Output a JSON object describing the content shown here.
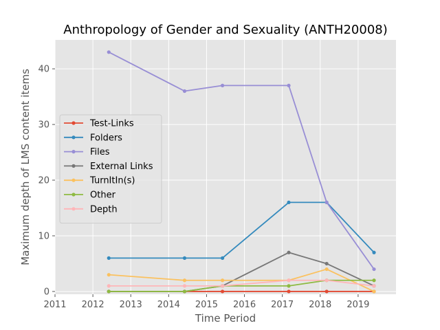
{
  "chart_data": {
    "type": "line",
    "title": "Anthropology of Gender and Sexuality (ANTH20008)",
    "xlabel": "Time Period",
    "ylabel": "Maximum depth of LMS content items",
    "xlim": [
      2011.0,
      2020.0
    ],
    "ylim": [
      -0.5,
      45.2
    ],
    "xticks": [
      2011,
      2012,
      2013,
      2014,
      2015,
      2016,
      2017,
      2018,
      2019
    ],
    "yticks": [
      0,
      10,
      20,
      30,
      40
    ],
    "grid": true,
    "legend_position": "center-left",
    "x": [
      2012.42,
      2014.42,
      2015.42,
      2017.17,
      2018.17,
      2019.42
    ],
    "series": [
      {
        "name": "Test-Links",
        "color": "#e24a33",
        "values": [
          0,
          0,
          0,
          0,
          0,
          0
        ]
      },
      {
        "name": "Folders",
        "color": "#348abd",
        "values": [
          6,
          6,
          6,
          16,
          16,
          7
        ]
      },
      {
        "name": "Files",
        "color": "#988ed5",
        "values": [
          43,
          36,
          37,
          37,
          16,
          4
        ]
      },
      {
        "name": "External Links",
        "color": "#777777",
        "values": [
          0,
          0,
          1,
          7,
          5,
          1
        ]
      },
      {
        "name": "TurnItIn(s)",
        "color": "#fbc15e",
        "values": [
          3,
          2,
          2,
          2,
          4,
          0
        ]
      },
      {
        "name": "Other",
        "color": "#8eba42",
        "values": [
          0,
          0,
          1,
          1,
          2,
          2
        ]
      },
      {
        "name": "Depth",
        "color": "#ffb5b8",
        "values": [
          1,
          1,
          1,
          2,
          2,
          1
        ]
      }
    ]
  }
}
